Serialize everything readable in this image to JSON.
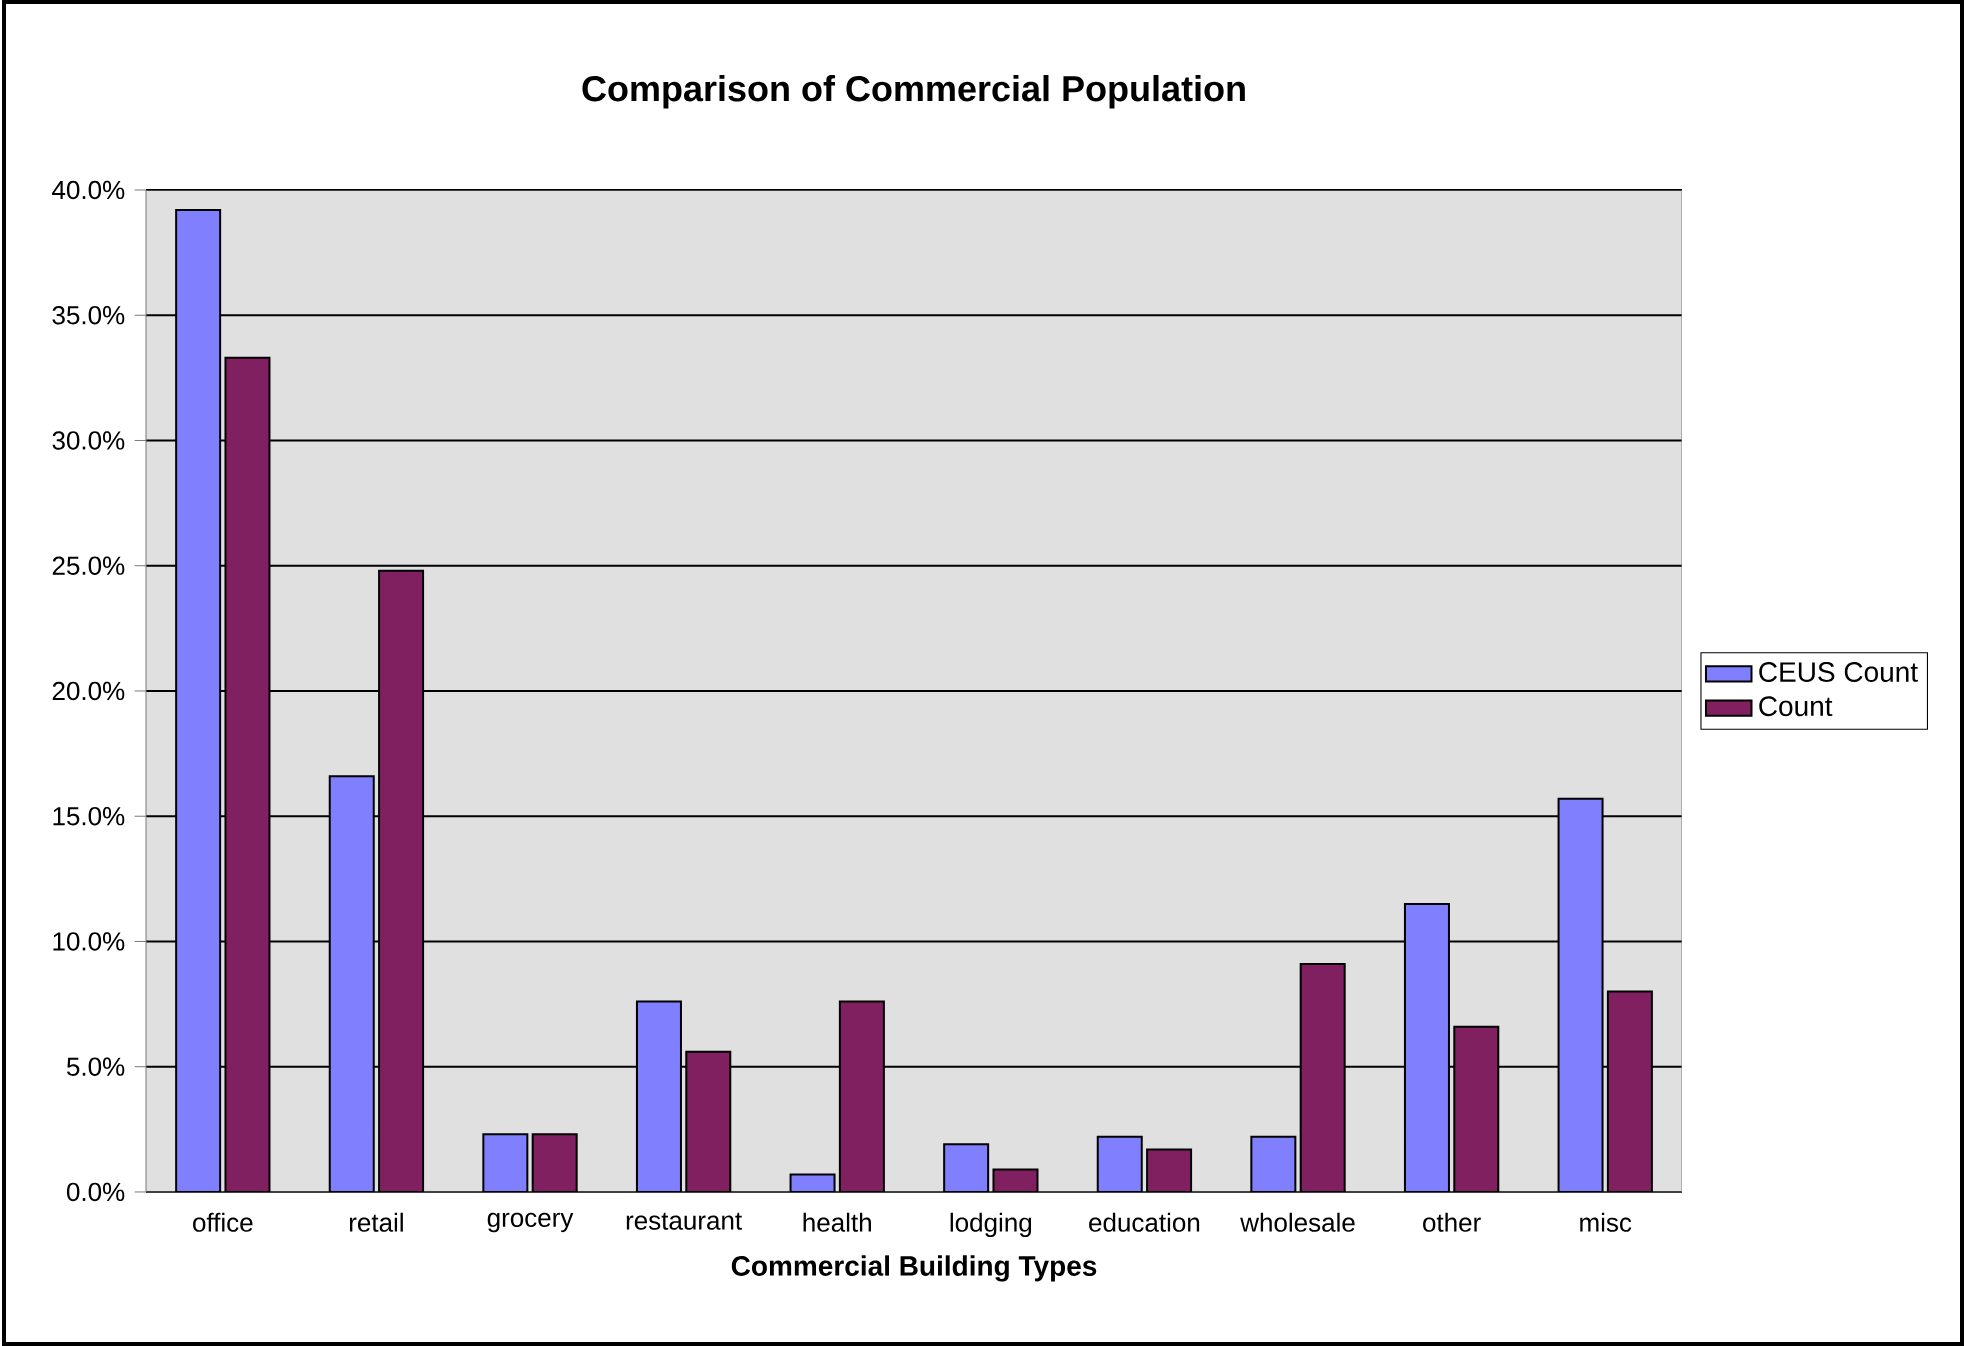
{
  "chart_data": {
    "type": "bar",
    "title": "Comparison of Commercial Population",
    "xlabel": "Commercial Building Types",
    "categories": [
      "office",
      "retail",
      "grocery",
      "restaurant",
      "health",
      "lodging",
      "education",
      "wholesale",
      "other",
      "misc"
    ],
    "series": [
      {
        "name": "CEUS Count",
        "color": "#8080ff",
        "values": [
          39.2,
          16.6,
          2.3,
          7.6,
          0.7,
          1.9,
          2.2,
          2.2,
          11.5,
          15.7
        ]
      },
      {
        "name": "Count",
        "color": "#802060",
        "values": [
          33.3,
          24.8,
          2.3,
          5.6,
          7.6,
          0.9,
          1.7,
          9.1,
          6.6,
          8.0
        ]
      }
    ],
    "ylim": [
      0,
      40
    ],
    "yticks": [
      {
        "value": 0,
        "label": "0.0%"
      },
      {
        "value": 5,
        "label": "5.0%"
      },
      {
        "value": 10,
        "label": "10.0%"
      },
      {
        "value": 15,
        "label": "15.0%"
      },
      {
        "value": 20,
        "label": "20.0%"
      },
      {
        "value": 25,
        "label": "25.0%"
      },
      {
        "value": 30,
        "label": "30.0%"
      },
      {
        "value": 35,
        "label": "35.0%"
      },
      {
        "value": 40,
        "label": "40.0%"
      }
    ],
    "grid": "y",
    "legend": "right"
  }
}
